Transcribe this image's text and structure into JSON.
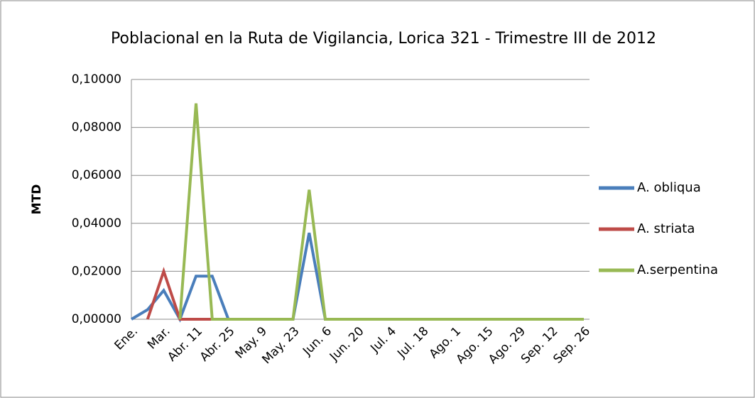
{
  "chart_data": {
    "type": "line",
    "title": "Poblacional  en la Ruta de Vigilancia, Lorica 321 - Trimestre III de 2012",
    "y_label": "MTD",
    "categories": [
      "Ene.",
      null,
      "Mar.",
      null,
      "Abr. 11",
      null,
      "Abr. 25",
      null,
      "May. 9",
      null,
      "May. 23",
      null,
      "Jun. 6",
      null,
      "Jun. 20",
      null,
      "Jul. 4",
      null,
      "Jul. 18",
      null,
      "Ago. 1",
      null,
      "Ago. 15",
      null,
      "Ago. 29",
      null,
      "Sep. 12",
      null,
      "Sep. 26"
    ],
    "series": [
      {
        "name": "A. obliqua",
        "color": "#4a7ebb",
        "values": [
          0,
          0.004,
          0.012,
          0,
          0.018,
          0.018,
          0,
          0,
          0,
          0,
          0,
          0.036,
          0,
          0,
          0,
          0,
          0,
          0,
          0,
          0,
          0,
          0,
          0,
          0,
          0,
          0,
          0,
          0,
          0
        ]
      },
      {
        "name": "A. striata",
        "color": "#be4b48",
        "values": [
          null,
          0,
          0.02,
          0,
          0,
          0,
          null,
          null,
          null,
          null,
          null,
          null,
          null,
          null,
          null,
          null,
          null,
          null,
          null,
          null,
          null,
          null,
          null,
          null,
          null,
          null,
          null,
          null,
          null
        ]
      },
      {
        "name": "A.serpentina",
        "color": "#98b954",
        "values": [
          null,
          null,
          null,
          0,
          0.09,
          0,
          0,
          0,
          0,
          0,
          0,
          0.054,
          0,
          0,
          0,
          0,
          0,
          0,
          0,
          0,
          0,
          0,
          0,
          0,
          0,
          0,
          0,
          0,
          0
        ]
      }
    ],
    "ylim": [
      0,
      0.1
    ],
    "yticks": [
      {
        "value": 0,
        "label": "0,00000"
      },
      {
        "value": 0.02,
        "label": "0,02000"
      },
      {
        "value": 0.04,
        "label": "0,04000"
      },
      {
        "value": 0.06,
        "label": "0,06000"
      },
      {
        "value": 0.08,
        "label": "0,08000"
      },
      {
        "value": 0.1,
        "label": "0,10000"
      }
    ],
    "grid": true,
    "legend": "right"
  }
}
